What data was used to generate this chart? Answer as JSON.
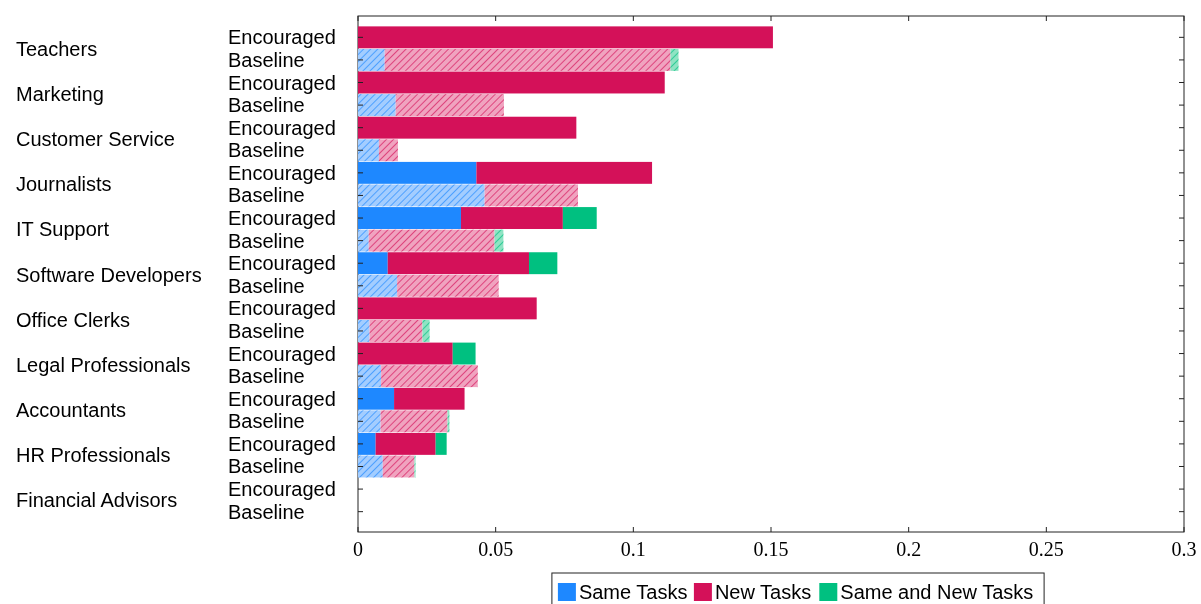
{
  "chart_data": {
    "type": "bar",
    "orientation": "horizontal",
    "stacked": true,
    "categories": [
      "Encouraged",
      "Baseline",
      "Encouraged",
      "Baseline",
      "Encouraged",
      "Baseline",
      "Encouraged",
      "Baseline",
      "Encouraged",
      "Baseline",
      "Encouraged",
      "Baseline",
      "Encouraged",
      "Baseline",
      "Encouraged",
      "Baseline",
      "Encouraged",
      "Baseline",
      "Encouraged",
      "Baseline",
      "Encouraged",
      "Baseline"
    ],
    "annotations": [
      "Teachers",
      "Marketing",
      "Customer Service",
      "Journalists",
      "IT Support",
      "Software Developers",
      "Office Clerks",
      "Legal Professionals",
      "Accountants",
      "HR Professionals",
      "Financial Advisors"
    ],
    "series": [
      {
        "name": "Same Tasks",
        "color": "#1e88ff",
        "colors": [
          "#1e88ff",
          "#a3cdff",
          "#1e88ff",
          "#a3cdff",
          "#1e88ff",
          "#a3cdff",
          "#1e88ff",
          "#a3cdff",
          "#1e88ff",
          "#a3cdff",
          "#1e88ff",
          "#a3cdff",
          "#1e88ff",
          "#a3cdff",
          "#1e88ff",
          "#a3cdff",
          "#1e88ff",
          "#a3cdff",
          "#1e88ff",
          "#a3cdff",
          "#1e88ff",
          "#a3cdff"
        ],
        "values": [
          0,
          0.0097,
          0,
          0.0137,
          0,
          0.0076,
          0.043,
          0.046,
          0.0374,
          0.0039,
          0.0108,
          0.0142,
          0,
          0.0042,
          0,
          0.0084,
          0.0131,
          0.0082,
          0.0064,
          0.009,
          0,
          0
        ]
      },
      {
        "name": "New Tasks",
        "color": "#d41159",
        "colors": [
          "#d41159",
          "#f0a3bf",
          "#d41159",
          "#f0a3bf",
          "#d41159",
          "#f0a3bf",
          "#d41159",
          "#f0a3bf",
          "#d41159",
          "#f0a3bf",
          "#d41159",
          "#f0a3bf",
          "#d41159",
          "#f0a3bf",
          "#d41159",
          "#f0a3bf",
          "#d41159",
          "#f0a3bf",
          "#d41159",
          "#f0a3bf",
          "#d41159",
          "#f0a3bf"
        ],
        "values": [
          0.1507,
          0.1038,
          0.1114,
          0.0393,
          0.0793,
          0.0069,
          0.0638,
          0.0339,
          0.037,
          0.0457,
          0.0513,
          0.0369,
          0.0649,
          0.0192,
          0.0344,
          0.0351,
          0.0256,
          0.0243,
          0.0218,
          0.0115,
          0,
          0
        ]
      },
      {
        "name": "Same and New Tasks",
        "color": "#00c080",
        "colors": [
          "#00c080",
          "#8fe3c3",
          "#00c080",
          "#8fe3c3",
          "#00c080",
          "#8fe3c3",
          "#00c080",
          "#8fe3c3",
          "#00c080",
          "#8fe3c3",
          "#00c080",
          "#8fe3c3",
          "#00c080",
          "#8fe3c3",
          "#00c080",
          "#8fe3c3",
          "#00c080",
          "#8fe3c3",
          "#00c080",
          "#8fe3c3",
          "#00c080",
          "#8fe3c3"
        ],
        "values": [
          0,
          0.0029,
          0,
          0,
          0,
          0,
          0,
          0,
          0.0123,
          0.0032,
          0.0103,
          0,
          0,
          0.0026,
          0.0083,
          0,
          0,
          0.0007,
          0.004,
          0.0004,
          0,
          0
        ]
      }
    ],
    "xlim": [
      0,
      0.3
    ],
    "xticks": [
      0,
      0.05,
      0.1,
      0.15,
      0.2,
      0.25,
      0.3
    ],
    "grid": false,
    "legend": "bottom"
  }
}
